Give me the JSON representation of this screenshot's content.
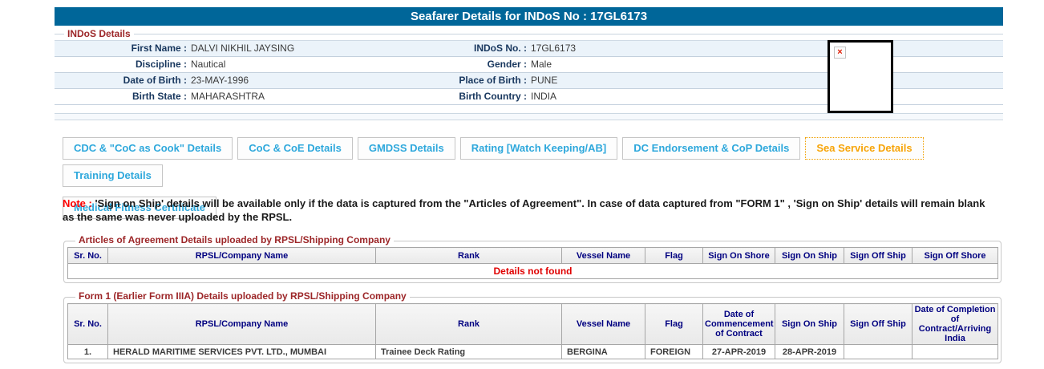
{
  "colors": {
    "titlebar_bg": "#006699",
    "legend_red": "#9c2628",
    "label_navy": "#17365d",
    "table_header_navy": "#000080",
    "tab_blue": "#2ea8dc",
    "tab_active_orange": "#f7a408",
    "note_red": "#ff0000",
    "error_red": "#e00000",
    "row_alt_blue": "#ebf3fa"
  },
  "header": {
    "title": "Seafarer Details for INDoS No : 17GL6173"
  },
  "indos": {
    "legend": "INDoS Details",
    "rows": [
      {
        "l_label": "First Name :",
        "l_value": "DALVI NIKHIL JAYSING",
        "r_label": "INDoS No. :",
        "r_value": "17GL6173"
      },
      {
        "l_label": "Discipline :",
        "l_value": "Nautical",
        "r_label": "Gender :",
        "r_value": "Male"
      },
      {
        "l_label": "Date of Birth :",
        "l_value": "23-MAY-1996",
        "r_label": "Place of Birth :",
        "r_value": "PUNE"
      },
      {
        "l_label": "Birth State :",
        "l_value": "MAHARASHTRA",
        "r_label": "Birth Country :",
        "r_value": "INDIA"
      }
    ]
  },
  "photo": {
    "broken_icon_glyph": "×"
  },
  "tabs": {
    "items": [
      {
        "label": "CDC & \"CoC as Cook\" Details",
        "active": false
      },
      {
        "label": "CoC & CoE Details",
        "active": false
      },
      {
        "label": "GMDSS Details",
        "active": false
      },
      {
        "label": "Rating [Watch Keeping/AB]",
        "active": false
      },
      {
        "label": "DC Endorsement & CoP Details",
        "active": false
      },
      {
        "label": "Sea Service Details",
        "active": true
      },
      {
        "label": "Training Details",
        "active": false
      },
      {
        "label": "Medical Fitness Certificate",
        "active": false
      }
    ]
  },
  "note": {
    "prefix": "Note :",
    "text": "'Sign on Ship' details will be available only if the data is captured from the \"Articles of Agreement\". In case of data captured from \"FORM 1\" , 'Sign on Ship' details will remain blank as the same was never uploaded by the RPSL."
  },
  "articles_table": {
    "legend": "Articles of Agreement Details uploaded by RPSL/Shipping Company",
    "headers": [
      "Sr. No.",
      "RPSL/Company Name",
      "Rank",
      "Vessel Name",
      "Flag",
      "Sign On Shore",
      "Sign On Ship",
      "Sign Off Ship",
      "Sign Off Shore"
    ],
    "empty_message": "Details not found"
  },
  "form1_table": {
    "legend": "Form 1 (Earlier Form IIIA) Details uploaded by RPSL/Shipping Company",
    "headers": [
      "Sr. No.",
      "RPSL/Company Name",
      "Rank",
      "Vessel Name",
      "Flag",
      "Date of Commencement of Contract",
      "Sign On Ship",
      "Sign Off Ship",
      "Date of Completion of Contract/Arriving India"
    ],
    "rows": [
      [
        "1.",
        "HERALD MARITIME SERVICES PVT. LTD., MUMBAI",
        "Trainee Deck Rating",
        "BERGINA",
        "FOREIGN",
        "27-APR-2019",
        "28-APR-2019",
        "",
        ""
      ]
    ]
  }
}
